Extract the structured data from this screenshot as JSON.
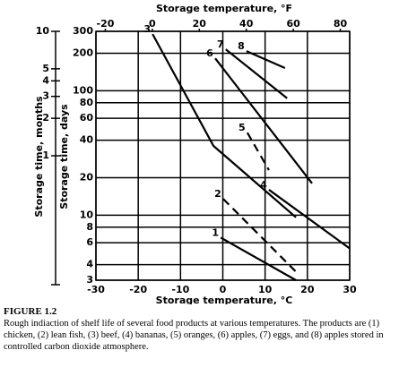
{
  "chart_data": {
    "type": "line",
    "x_label": "Storage temperature, °C",
    "x2_label": "Storage temperature, °F",
    "y_label": "Storage time, days",
    "y2_label": "Storage time, months",
    "xlim": [
      -30,
      30
    ],
    "xticks": [
      -30,
      -20,
      -10,
      0,
      10,
      20,
      30
    ],
    "x2lim": [
      -24,
      84
    ],
    "x2ticks": [
      -20,
      0,
      20,
      40,
      60,
      80
    ],
    "ylim": [
      3,
      300
    ],
    "yticks": [
      3,
      4,
      6,
      8,
      10,
      20,
      40,
      60,
      80,
      100,
      200,
      300
    ],
    "y2lim": [
      0.1,
      10
    ],
    "y2ticks": [
      1,
      2,
      3,
      4,
      5,
      10
    ],
    "log_scale": true,
    "grid": true,
    "series": [
      {
        "name": "1",
        "color": "#000",
        "dashed": false,
        "x": [
          -0.5,
          17.3
        ],
        "values": [
          6.6,
          3
        ]
      },
      {
        "name": "2",
        "color": "#000",
        "dashed": true,
        "x": [
          0.1,
          17.7
        ],
        "values": [
          13.5,
          3.4
        ]
      },
      {
        "name": "3",
        "color": "#000",
        "dashed": false,
        "x": [
          -16.6,
          -2.2,
          17.3
        ],
        "values": [
          285,
          36,
          9.6
        ]
      },
      {
        "name": "4",
        "color": "#000",
        "dashed": false,
        "x": [
          10.9,
          30
        ],
        "values": [
          16,
          5.4
        ]
      },
      {
        "name": "5",
        "color": "#000",
        "dashed": true,
        "x": [
          5.8,
          10.9
        ],
        "values": [
          46,
          23
        ]
      },
      {
        "name": "6",
        "color": "#000",
        "dashed": false,
        "x": [
          -1.8,
          21.1
        ],
        "values": [
          182,
          18
        ]
      },
      {
        "name": "7",
        "color": "#000",
        "dashed": false,
        "x": [
          0.7,
          15.2
        ],
        "values": [
          215,
          87
        ]
      },
      {
        "name": "8",
        "color": "#000",
        "dashed": false,
        "x": [
          5.6,
          14.7
        ],
        "values": [
          208,
          152
        ]
      }
    ]
  },
  "figure": {
    "label": "FIGURE 1.2",
    "caption": "Rough indiaction of shelf life of several food products at various temperatures. The products are (1) chicken, (2) lean fish, (3) beef, (4) bananas, (5) oranges, (6) apples, (7) eggs, and (8) apples stored in controlled carbon dioxide atmosphere."
  }
}
